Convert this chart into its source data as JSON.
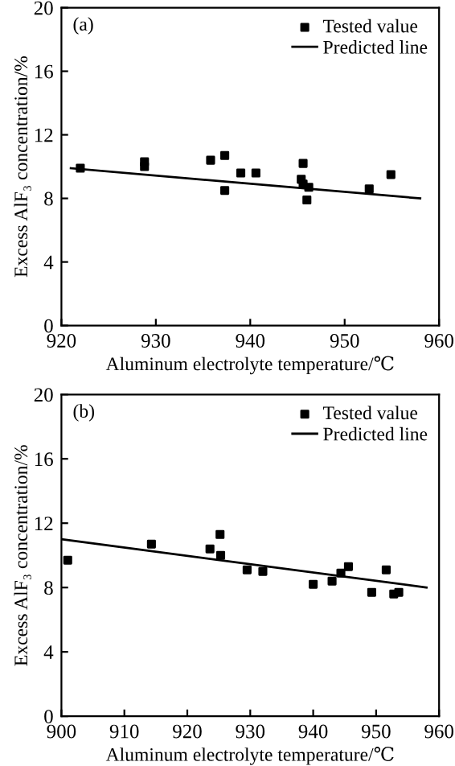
{
  "chart_data": [
    {
      "type": "scatter",
      "xlabel": "Aluminum electrolyte temperature/℃",
      "ylabel": "Excess AlF₃ concentration/%",
      "annotations": [
        "(a)"
      ],
      "xlim": [
        920,
        960
      ],
      "ylim": [
        0,
        20
      ],
      "xticks": [
        920,
        930,
        940,
        950,
        960
      ],
      "yticks": [
        0,
        4,
        8,
        12,
        16,
        20
      ],
      "grid": false,
      "legend": "top right",
      "series": [
        {
          "name": "Tested value",
          "marker": "square",
          "color": "#000000",
          "x": [
            922,
            928.8,
            928.8,
            935.8,
            937.3,
            937.3,
            939,
            940.6,
            945.4,
            945.6,
            945.6,
            946,
            946.2,
            952.6,
            954.9
          ],
          "values": [
            9.9,
            10.0,
            10.3,
            10.4,
            10.7,
            8.5,
            9.6,
            9.6,
            9.2,
            10.2,
            8.9,
            7.9,
            8.7,
            8.6,
            9.5
          ]
        },
        {
          "name": "Predicted line",
          "type": "line",
          "marker": "none",
          "line_style": "solid",
          "color": "#000000",
          "x": [
            921,
            958
          ],
          "values": [
            9.9,
            8.0
          ]
        }
      ]
    },
    {
      "type": "scatter",
      "xlabel": "Aluminum electrolyte temperature/℃",
      "ylabel": "Excess AlF₃ concentration/%",
      "annotations": [
        "(b)"
      ],
      "xlim": [
        900,
        960
      ],
      "ylim": [
        0,
        20
      ],
      "xticks": [
        900,
        910,
        920,
        930,
        940,
        950,
        960
      ],
      "yticks": [
        0,
        4,
        8,
        12,
        16,
        20
      ],
      "grid": false,
      "legend": "top right",
      "series": [
        {
          "name": "Tested value",
          "marker": "square",
          "color": "#000000",
          "x": [
            901,
            914.3,
            923.6,
            925.2,
            925.3,
            929.5,
            932,
            940,
            943,
            944.4,
            945.6,
            949.3,
            951.6,
            952.8,
            953.6
          ],
          "values": [
            9.7,
            10.7,
            10.4,
            11.3,
            10.0,
            9.1,
            9.0,
            8.2,
            8.4,
            8.9,
            9.3,
            7.7,
            9.1,
            7.6,
            7.7
          ]
        },
        {
          "name": "Predicted line",
          "type": "line",
          "marker": "none",
          "line_style": "solid",
          "color": "#000000",
          "x": [
            900,
            958
          ],
          "values": [
            11.0,
            8.0
          ]
        }
      ]
    }
  ]
}
